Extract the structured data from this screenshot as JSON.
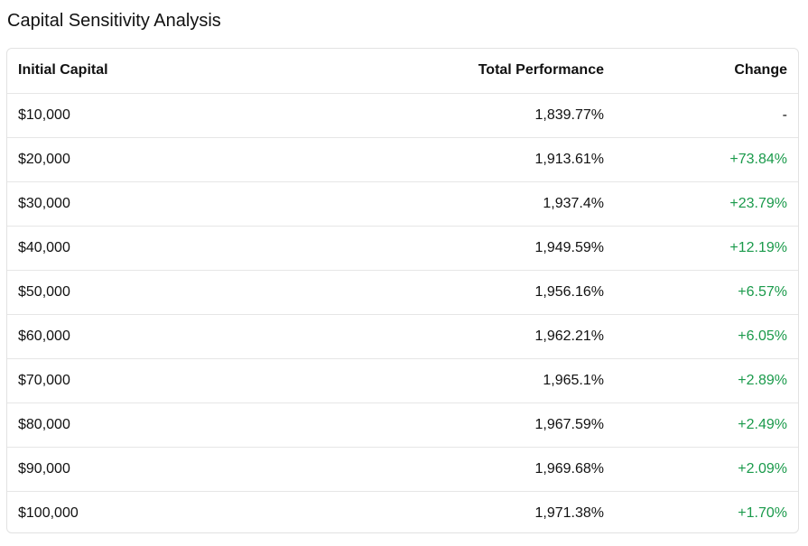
{
  "title": "Capital Sensitivity Analysis",
  "table": {
    "headers": {
      "capital": "Initial Capital",
      "performance": "Total Performance",
      "change": "Change"
    },
    "rows": [
      {
        "capital": "$10,000",
        "performance": "1,839.77%",
        "change": "-",
        "trend": "neutral"
      },
      {
        "capital": "$20,000",
        "performance": "1,913.61%",
        "change": "+73.84%",
        "trend": "positive"
      },
      {
        "capital": "$30,000",
        "performance": "1,937.4%",
        "change": "+23.79%",
        "trend": "positive"
      },
      {
        "capital": "$40,000",
        "performance": "1,949.59%",
        "change": "+12.19%",
        "trend": "positive"
      },
      {
        "capital": "$50,000",
        "performance": "1,956.16%",
        "change": "+6.57%",
        "trend": "positive"
      },
      {
        "capital": "$60,000",
        "performance": "1,962.21%",
        "change": "+6.05%",
        "trend": "positive"
      },
      {
        "capital": "$70,000",
        "performance": "1,965.1%",
        "change": "+2.89%",
        "trend": "positive"
      },
      {
        "capital": "$80,000",
        "performance": "1,967.59%",
        "change": "+2.49%",
        "trend": "positive"
      },
      {
        "capital": "$90,000",
        "performance": "1,969.68%",
        "change": "+2.09%",
        "trend": "positive"
      },
      {
        "capital": "$100,000",
        "performance": "1,971.38%",
        "change": "+1.70%",
        "trend": "positive"
      }
    ]
  },
  "colors": {
    "positive": "#1a9a4b",
    "text": "#111111",
    "border": "#e2e2e2"
  }
}
